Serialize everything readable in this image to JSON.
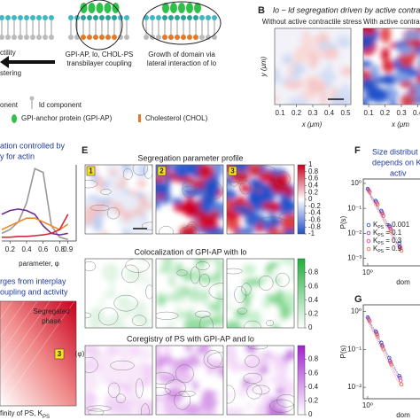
{
  "panel_a": {
    "labels": [
      "ctility",
      "stering",
      "GPI-AP, lo, CHOL-PS",
      "transbilayer coupling",
      "Growth of domain via",
      "lateral interaction of lo"
    ],
    "legend": [
      "onent",
      "ld component",
      "GPI-anchor protein (GPI-AP)",
      "Cholesterol (CHOL)"
    ]
  },
  "panel_b": {
    "letter": "B",
    "title": "lo − ld segregation driven by active contractile s",
    "left_title": "Without active contractile stress",
    "right_title": "With active contrac",
    "y_label": "y (μm)",
    "x_label": "x (μm)",
    "x_label_right": "x (μm",
    "xticks": [
      0.1,
      0.2,
      0.3,
      0.4,
      0.5
    ],
    "xticks_right": [
      0.1,
      0.2,
      0.3,
      0.4
    ]
  },
  "panel_c": {
    "title": [
      "ation controlled by",
      "y for actin"
    ],
    "x_label": "parameter, φ",
    "xlim": [
      0.1,
      1.0
    ],
    "ylim": [
      0,
      1
    ],
    "xticks": [
      0.2,
      0.4,
      0.6,
      0.8,
      0.9
    ],
    "x": [
      0.1,
      0.2,
      0.3,
      0.4,
      0.5,
      0.6,
      0.7,
      0.8,
      0.9
    ],
    "series": [
      {
        "color": "#999999",
        "values": [
          0.1,
          0.15,
          0.25,
          0.5,
          0.95,
          0.9,
          0.2,
          0.05,
          0.02
        ]
      },
      {
        "color": "#6a2c91",
        "values": [
          0.35,
          0.4,
          0.42,
          0.4,
          0.35,
          0.2,
          0.1,
          0.08,
          0.1
        ]
      },
      {
        "color": "#f08a24",
        "values": [
          0.15,
          0.2,
          0.25,
          0.3,
          0.3,
          0.25,
          0.2,
          0.15,
          0.22
        ]
      },
      {
        "color": "#d7263d",
        "values": [
          0.05,
          0.05,
          0.06,
          0.06,
          0.07,
          0.08,
          0.1,
          0.15,
          0.35
        ]
      }
    ]
  },
  "panel_d": {
    "title": [
      "rges from interplay",
      "oupling and activity"
    ],
    "phase_label": [
      "Segregated",
      "phase"
    ],
    "marker": "3",
    "x_label": "finity of PS, K",
    "x_label_sub": "PS"
  },
  "panel_e": {
    "letter": "E",
    "panel_numbers": [
      "1",
      "2",
      "3"
    ],
    "y_label": "⟨φ⟩",
    "rows": [
      {
        "title": "Segregation parameter profile",
        "colorbar_ticks": [
          1,
          0.8,
          0.6,
          0.4,
          0.2,
          0,
          -0.2,
          -0.4,
          -0.6,
          -0.8,
          -1
        ]
      },
      {
        "title": "Colocalization of GPI-AP with lo",
        "colorbar_ticks": [
          0.8,
          0.6,
          0.4,
          0.2,
          0
        ]
      },
      {
        "title": "Coregistry of PS with GPI-AP and lo",
        "colorbar_ticks": [
          0.8,
          0.6,
          0.4,
          0.2,
          0
        ]
      }
    ]
  },
  "panel_f": {
    "letter": "F",
    "title": [
      "Size distribut",
      "depends on K",
      "activ"
    ],
    "y_label": "P(s)",
    "x_label": "dom",
    "ylim": [
      0.0005,
      1.5
    ],
    "yticks": [
      {
        "value": 1,
        "label": "10⁰"
      },
      {
        "value": 0.1,
        "label": "10⁻¹"
      },
      {
        "value": 0.01,
        "label": "10⁻²"
      },
      {
        "value": 0.001,
        "label": "10⁻³"
      }
    ],
    "xlim": [
      0.8,
      10
    ],
    "xticks": [
      {
        "value": 1,
        "label": "10⁰"
      }
    ],
    "x": [
      1,
      1.5,
      2,
      3,
      5
    ],
    "series": [
      {
        "name": "K  = 0.001",
        "color": "#2b59c3",
        "values": [
          0.6,
          0.2,
          0.08,
          0.02,
          0.004
        ]
      },
      {
        "name": "K  = 0.1",
        "color": "#8e44ad",
        "values": [
          0.55,
          0.18,
          0.07,
          0.018,
          0.003
        ]
      },
      {
        "name": "K  = 0.3",
        "color": "#e84393",
        "values": [
          0.5,
          0.16,
          0.06,
          0.015,
          0.0025
        ]
      },
      {
        "name": "K  = 0.9",
        "color": "#e17055",
        "values": [
          0.45,
          0.14,
          0.05,
          0.012,
          0.002
        ]
      }
    ],
    "legend_sub": "PS"
  },
  "panel_g": {
    "letter": "G",
    "y_label": "P(s)",
    "x_label": "dom",
    "ylim": [
      0.005,
      1.5
    ],
    "yticks": [
      {
        "value": 1,
        "label": "10⁰"
      },
      {
        "value": 0.1,
        "label": "10⁻¹"
      },
      {
        "value": 0.01,
        "label": "10⁻²"
      }
    ],
    "xlim": [
      0.8,
      10
    ],
    "xticks": [
      {
        "value": 1,
        "label": "10⁰"
      }
    ],
    "x": [
      1,
      1.5,
      2,
      3,
      5
    ],
    "series": [
      {
        "color": "#2b59c3",
        "values": [
          0.7,
          0.3,
          0.15,
          0.06,
          0.02
        ]
      },
      {
        "color": "#8e44ad",
        "values": [
          0.65,
          0.28,
          0.13,
          0.05,
          0.018
        ]
      },
      {
        "color": "#e84393",
        "values": [
          0.6,
          0.25,
          0.12,
          0.045,
          0.015
        ]
      },
      {
        "color": "#e17055",
        "values": [
          0.55,
          0.22,
          0.1,
          0.04,
          0.012
        ]
      }
    ]
  }
}
